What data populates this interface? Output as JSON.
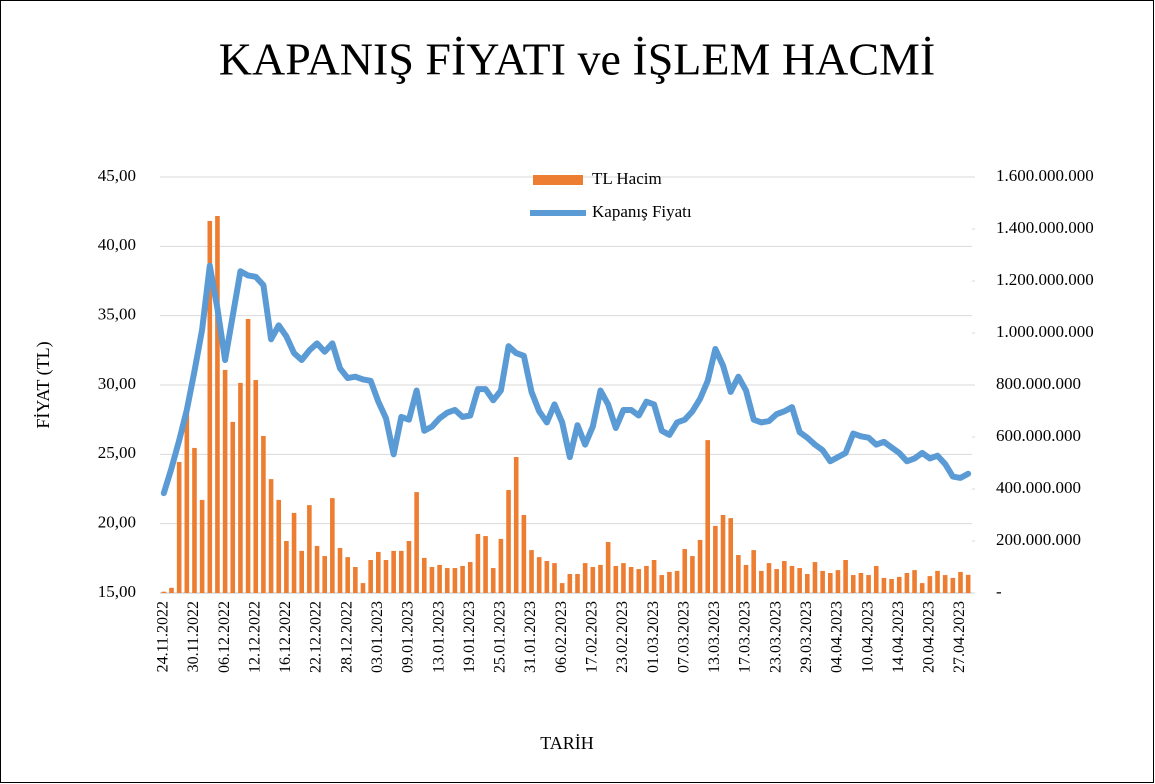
{
  "chart_data": {
    "type": "combo",
    "title": "KAPANIŞ FİYATI ve İŞLEM HACMİ",
    "xlabel": "TARİH",
    "ylabel": "FİYAT (TL)",
    "categories": [
      "24.11.2022",
      null,
      null,
      null,
      "30.11.2022",
      null,
      null,
      null,
      "06.12.2022",
      null,
      null,
      null,
      "12.12.2022",
      null,
      null,
      null,
      "16.12.2022",
      null,
      null,
      null,
      "22.12.2022",
      null,
      null,
      null,
      "28.12.2022",
      null,
      null,
      null,
      "03.01.2023",
      null,
      null,
      null,
      "09.01.2023",
      null,
      null,
      null,
      "13.01.2023",
      null,
      null,
      null,
      "19.01.2023",
      null,
      null,
      null,
      "25.01.2023",
      null,
      null,
      null,
      "31.01.2023",
      null,
      null,
      null,
      "06.02.2023",
      null,
      null,
      null,
      "17.02.2023",
      null,
      null,
      null,
      "23.02.2023",
      null,
      null,
      null,
      "01.03.2023",
      null,
      null,
      null,
      "07.03.2023",
      null,
      null,
      null,
      "13.03.2023",
      null,
      null,
      null,
      "17.03.2023",
      null,
      null,
      null,
      "23.03.2023",
      null,
      null,
      null,
      "29.03.2023",
      null,
      null,
      null,
      "04.04.2023",
      null,
      null,
      null,
      "10.04.2023",
      null,
      null,
      null,
      "14.04.2023",
      null,
      null,
      null,
      "20.04.2023",
      null,
      null,
      null,
      "27.04.2023",
      null
    ],
    "series": [
      {
        "name": "TL Hacim",
        "type": "bar",
        "axis": "y2",
        "color": "#ed7d31",
        "values": [
          5000000,
          20000000,
          504000000,
          712000000,
          558000000,
          358000000,
          1431000000,
          1450000000,
          858000000,
          658000000,
          808000000,
          1054000000,
          819000000,
          604000000,
          438000000,
          358000000,
          200000000,
          308000000,
          162000000,
          338000000,
          181000000,
          142000000,
          365000000,
          173000000,
          138000000,
          100000000,
          38000000,
          127000000,
          158000000,
          127000000,
          162000000,
          162000000,
          200000000,
          388000000,
          135000000,
          100000000,
          108000000,
          96000000,
          96000000,
          104000000,
          119000000,
          227000000,
          219000000,
          96000000,
          208000000,
          396000000,
          523000000,
          300000000,
          165000000,
          138000000,
          123000000,
          115000000,
          38000000,
          73000000,
          73000000,
          115000000,
          100000000,
          108000000,
          196000000,
          104000000,
          115000000,
          100000000,
          92000000,
          104000000,
          127000000,
          69000000,
          81000000,
          85000000,
          169000000,
          142000000,
          204000000,
          588000000,
          258000000,
          300000000,
          288000000,
          146000000,
          108000000,
          165000000,
          85000000,
          115000000,
          92000000,
          123000000,
          104000000,
          96000000,
          73000000,
          119000000,
          85000000,
          77000000,
          88000000,
          127000000,
          69000000,
          77000000,
          69000000,
          104000000,
          58000000,
          54000000,
          62000000,
          77000000,
          88000000,
          38000000,
          65000000,
          85000000,
          69000000,
          58000000,
          81000000,
          70000000
        ]
      },
      {
        "name": "Kapanış Fiyatı",
        "type": "line",
        "axis": "y",
        "color": "#5b9bd5",
        "values": [
          22.2,
          24.0,
          26.0,
          28.2,
          31.0,
          34.0,
          38.6,
          35.5,
          31.8,
          35.0,
          38.2,
          37.9,
          37.8,
          37.2,
          33.3,
          34.3,
          33.5,
          32.3,
          31.8,
          32.5,
          33.0,
          32.4,
          33.0,
          31.2,
          30.5,
          30.6,
          30.4,
          30.3,
          28.8,
          27.6,
          25.0,
          27.7,
          27.5,
          29.6,
          26.7,
          27.0,
          27.6,
          28.0,
          28.2,
          27.7,
          27.8,
          29.7,
          29.7,
          28.9,
          29.6,
          32.8,
          32.3,
          32.1,
          29.5,
          28.1,
          27.3,
          28.6,
          27.3,
          24.8,
          27.1,
          25.7,
          27.0,
          29.6,
          28.6,
          26.9,
          28.2,
          28.2,
          27.8,
          28.8,
          28.6,
          26.7,
          26.4,
          27.3,
          27.5,
          28.1,
          29.0,
          30.3,
          32.6,
          31.4,
          29.5,
          30.6,
          29.6,
          27.5,
          27.3,
          27.4,
          27.9,
          28.1,
          28.4,
          26.6,
          26.2,
          25.7,
          25.3,
          24.5,
          24.8,
          25.1,
          26.5,
          26.3,
          26.2,
          25.7,
          25.9,
          25.5,
          25.1,
          24.5,
          24.7,
          25.1,
          24.7,
          24.9,
          24.3,
          23.4,
          23.3,
          23.6
        ]
      }
    ],
    "ylim": [
      15,
      45
    ],
    "yticks": [
      {
        "value": 15,
        "label": "15,00"
      },
      {
        "value": 20,
        "label": "20,00"
      },
      {
        "value": 25,
        "label": "25,00"
      },
      {
        "value": 30,
        "label": "30,00"
      },
      {
        "value": 35,
        "label": "35,00"
      },
      {
        "value": 40,
        "label": "40,00"
      },
      {
        "value": 45,
        "label": "45,00"
      }
    ],
    "y2lim": [
      0,
      1600000000
    ],
    "y2ticks": [
      {
        "value": 0,
        "label": "-"
      },
      {
        "value": 200000000,
        "label": "200.000.000"
      },
      {
        "value": 400000000,
        "label": "400.000.000"
      },
      {
        "value": 600000000,
        "label": "600.000.000"
      },
      {
        "value": 800000000,
        "label": "800.000.000"
      },
      {
        "value": 1000000000,
        "label": "1.000.000.000"
      },
      {
        "value": 1200000000,
        "label": "1.200.000.000"
      },
      {
        "value": 1400000000,
        "label": "1.400.000.000"
      },
      {
        "value": 1600000000,
        "label": "1.600.000.000"
      }
    ],
    "grid": true,
    "legend": "top"
  }
}
